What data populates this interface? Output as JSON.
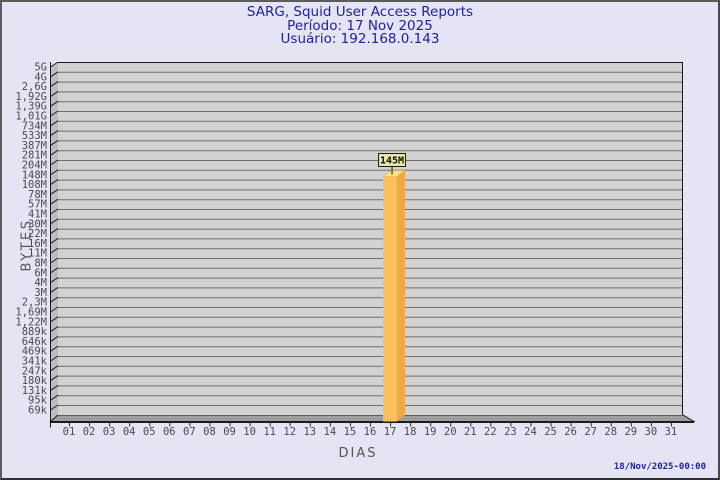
{
  "header": {
    "title": "SARG, Squid User Access Reports",
    "period": "Período: 17 Nov 2025",
    "user": "Usuário: 192.168.0.143"
  },
  "footer": {
    "generated_at": "18/Nov/2025-00:00"
  },
  "chart_data": {
    "type": "bar",
    "title": "SARG, Squid User Access Reports",
    "subtitle": [
      "Período: 17 Nov 2025",
      "Usuário: 192.168.0.143"
    ],
    "xlabel": "DIAS",
    "ylabel": "BYTES",
    "y_scale": "log",
    "grid": "horizontal",
    "y_tick_labels": [
      "5G",
      "4G",
      "2,6G",
      "1,92G",
      "1,39G",
      "1,01G",
      "734M",
      "533M",
      "387M",
      "281M",
      "204M",
      "148M",
      "108M",
      "78M",
      "57M",
      "41M",
      "30M",
      "22M",
      "16M",
      "11M",
      "8M",
      "6M",
      "4M",
      "3M",
      "2,3M",
      "1,69M",
      "1,22M",
      "889k",
      "646k",
      "469k",
      "341k",
      "247k",
      "180k",
      "131k",
      "95k",
      "69k"
    ],
    "categories": [
      "01",
      "02",
      "03",
      "04",
      "05",
      "06",
      "07",
      "08",
      "09",
      "10",
      "11",
      "12",
      "13",
      "14",
      "15",
      "16",
      "17",
      "18",
      "19",
      "20",
      "21",
      "22",
      "23",
      "24",
      "25",
      "26",
      "27",
      "28",
      "29",
      "30",
      "31"
    ],
    "bars": [
      {
        "category": "17",
        "value_label": "145M"
      }
    ],
    "colors": {
      "page_bg": "#e4e4f4",
      "title_text": "#1f1fa0",
      "axis_text": "#4a4a4a",
      "axis_title_text": "#565656",
      "plot_bg": "#d2d2d2",
      "gridline": "#6e6e6e",
      "plot_border": "#1a1a1a",
      "wall": "#bdbdbd",
      "floor": "#9e9e9e",
      "bar_front": "#fbc05e",
      "bar_side": "#eda847",
      "bar_top": "#ffe084",
      "bar_outline": "#d59a3a",
      "value_box_bg": "#eae6a3",
      "value_box_text": "#111111"
    }
  }
}
